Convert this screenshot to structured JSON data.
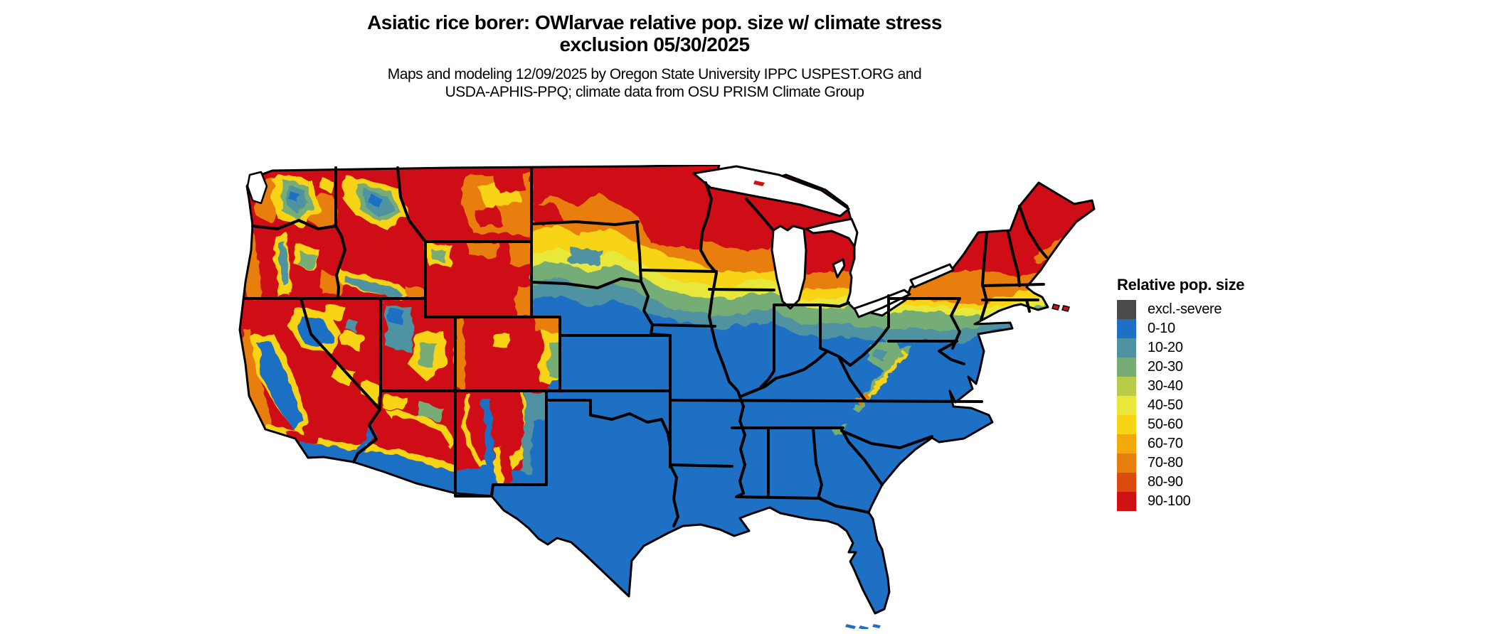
{
  "title": {
    "line1": "Asiatic rice borer: OWlarvae relative pop. size w/ climate stress",
    "line2": "exclusion 05/30/2025"
  },
  "subtitle": {
    "line1": "Maps and modeling 12/09/2025 by Oregon State University IPPC USPEST.ORG and",
    "line2": "USDA-APHIS-PPQ; climate data from OSU PRISM Climate Group"
  },
  "map": {
    "region": "Contiguous United States",
    "kind": "raster choropleth of relative population size with climate stress exclusion",
    "water_color": "#ffffff",
    "border_color": "#000000"
  },
  "legend": {
    "title": "Relative pop. size",
    "items": [
      {
        "key": "excl",
        "label": "excl.-severe",
        "color": "#4a4a4a"
      },
      {
        "key": "c0",
        "label": "0-10",
        "color": "#1e70c4"
      },
      {
        "key": "c10",
        "label": "10-20",
        "color": "#4f93a2"
      },
      {
        "key": "c20",
        "label": "20-30",
        "color": "#76ac74"
      },
      {
        "key": "c30",
        "label": "30-40",
        "color": "#b9cb49"
      },
      {
        "key": "c40",
        "label": "40-50",
        "color": "#e8e73a"
      },
      {
        "key": "c50",
        "label": "50-60",
        "color": "#f7d414"
      },
      {
        "key": "c60",
        "label": "60-70",
        "color": "#f2a90c"
      },
      {
        "key": "c70",
        "label": "70-80",
        "color": "#e87e0c"
      },
      {
        "key": "c80",
        "label": "80-90",
        "color": "#d94b0e"
      },
      {
        "key": "c90",
        "label": "90-100",
        "color": "#cf1113"
      }
    ]
  }
}
